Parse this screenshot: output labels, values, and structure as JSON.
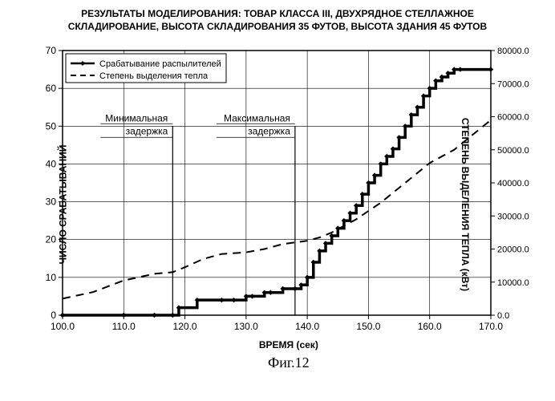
{
  "title_line1": "РЕЗУЛЬТАТЫ МОДЕЛИРОВАНИЯ: ТОВАР КЛАССА III, ДВУХРЯДНОЕ СТЕЛЛАЖНОЕ",
  "title_line2": "СКЛАДИРОВАНИЕ, ВЫСОТА СКЛАДИРОВАНИЯ 35 ФУТОВ, ВЫСОТА ЗДАНИЯ 45 ФУТОВ",
  "x_axis_label": "ВРЕМЯ (сек)",
  "y_left_label": "ЧИСЛО СРАБАТЫВАНИЙ",
  "y_right_label": "СТЕПЕНЬ ВЫДЕЛЕНИЯ ТЕПЛА (кВт)",
  "figure_label": "Фиг.12",
  "legend": {
    "series1": "Срабатывание распылителей",
    "series2": "Степень выделения тепла"
  },
  "annotations": {
    "min_delay_l1": "Минимальная",
    "min_delay_l2": "задержка",
    "max_delay_l1": "Максимальная",
    "max_delay_l2": "задержка",
    "min_delay_x": 118,
    "max_delay_x": 138
  },
  "chart": {
    "type": "line-dual-axis",
    "xlim": [
      100,
      170
    ],
    "xtick_step": 10,
    "xticks": [
      "100.0",
      "110.0",
      "120.0",
      "130.0",
      "140.0",
      "150.0",
      "160.0",
      "170.0"
    ],
    "y_left_lim": [
      0,
      70
    ],
    "y_left_tick_step": 10,
    "y_left_ticks": [
      "0",
      "10",
      "20",
      "30",
      "40",
      "50",
      "60",
      "70"
    ],
    "y_right_lim": [
      0,
      80000
    ],
    "y_right_tick_step": 10000,
    "y_right_ticks": [
      "0.0",
      "10000.0",
      "20000.0",
      "30000.0",
      "40000.0",
      "50000.0",
      "60000.0",
      "70000.0",
      "80000.0"
    ],
    "background_color": "#ffffff",
    "grid_color": "#000000",
    "series1_color": "#000000",
    "series1_linewidth": 3.5,
    "series1_style": "solid-stepped-with-diamonds",
    "series2_color": "#000000",
    "series2_linewidth": 2,
    "series2_style": "dashed",
    "series1_data": {
      "x": [
        100,
        110,
        115,
        118,
        119,
        122,
        126,
        128,
        130,
        131,
        133,
        134,
        136,
        138,
        139,
        140,
        141,
        142,
        143,
        144,
        145,
        146,
        147,
        148,
        149,
        150,
        151,
        152,
        153,
        154,
        155,
        156,
        157,
        158,
        159,
        160,
        161,
        162,
        163,
        164,
        165,
        170
      ],
      "y": [
        0,
        0,
        0,
        0,
        2,
        4,
        4,
        4,
        5,
        5,
        6,
        6,
        7,
        7,
        8,
        10,
        14,
        17,
        19,
        21,
        23,
        25,
        27,
        29,
        32,
        35,
        37,
        40,
        42,
        44,
        47,
        50,
        53,
        55,
        58,
        60,
        62,
        63,
        64,
        65,
        65,
        65
      ]
    },
    "series2_data": {
      "x": [
        100,
        105,
        110,
        115,
        118,
        120,
        123,
        126,
        130,
        133,
        136,
        138,
        140,
        142,
        144,
        146,
        148,
        150,
        152,
        154,
        156,
        158,
        160,
        162,
        164,
        166,
        168,
        170
      ],
      "y": [
        5000,
        7000,
        10500,
        12500,
        13000,
        14500,
        17000,
        18500,
        19000,
        20000,
        21500,
        22000,
        22500,
        23500,
        25000,
        27000,
        29000,
        31500,
        34000,
        37000,
        40000,
        43000,
        46000,
        48000,
        50000,
        53000,
        56000,
        59000
      ]
    }
  }
}
